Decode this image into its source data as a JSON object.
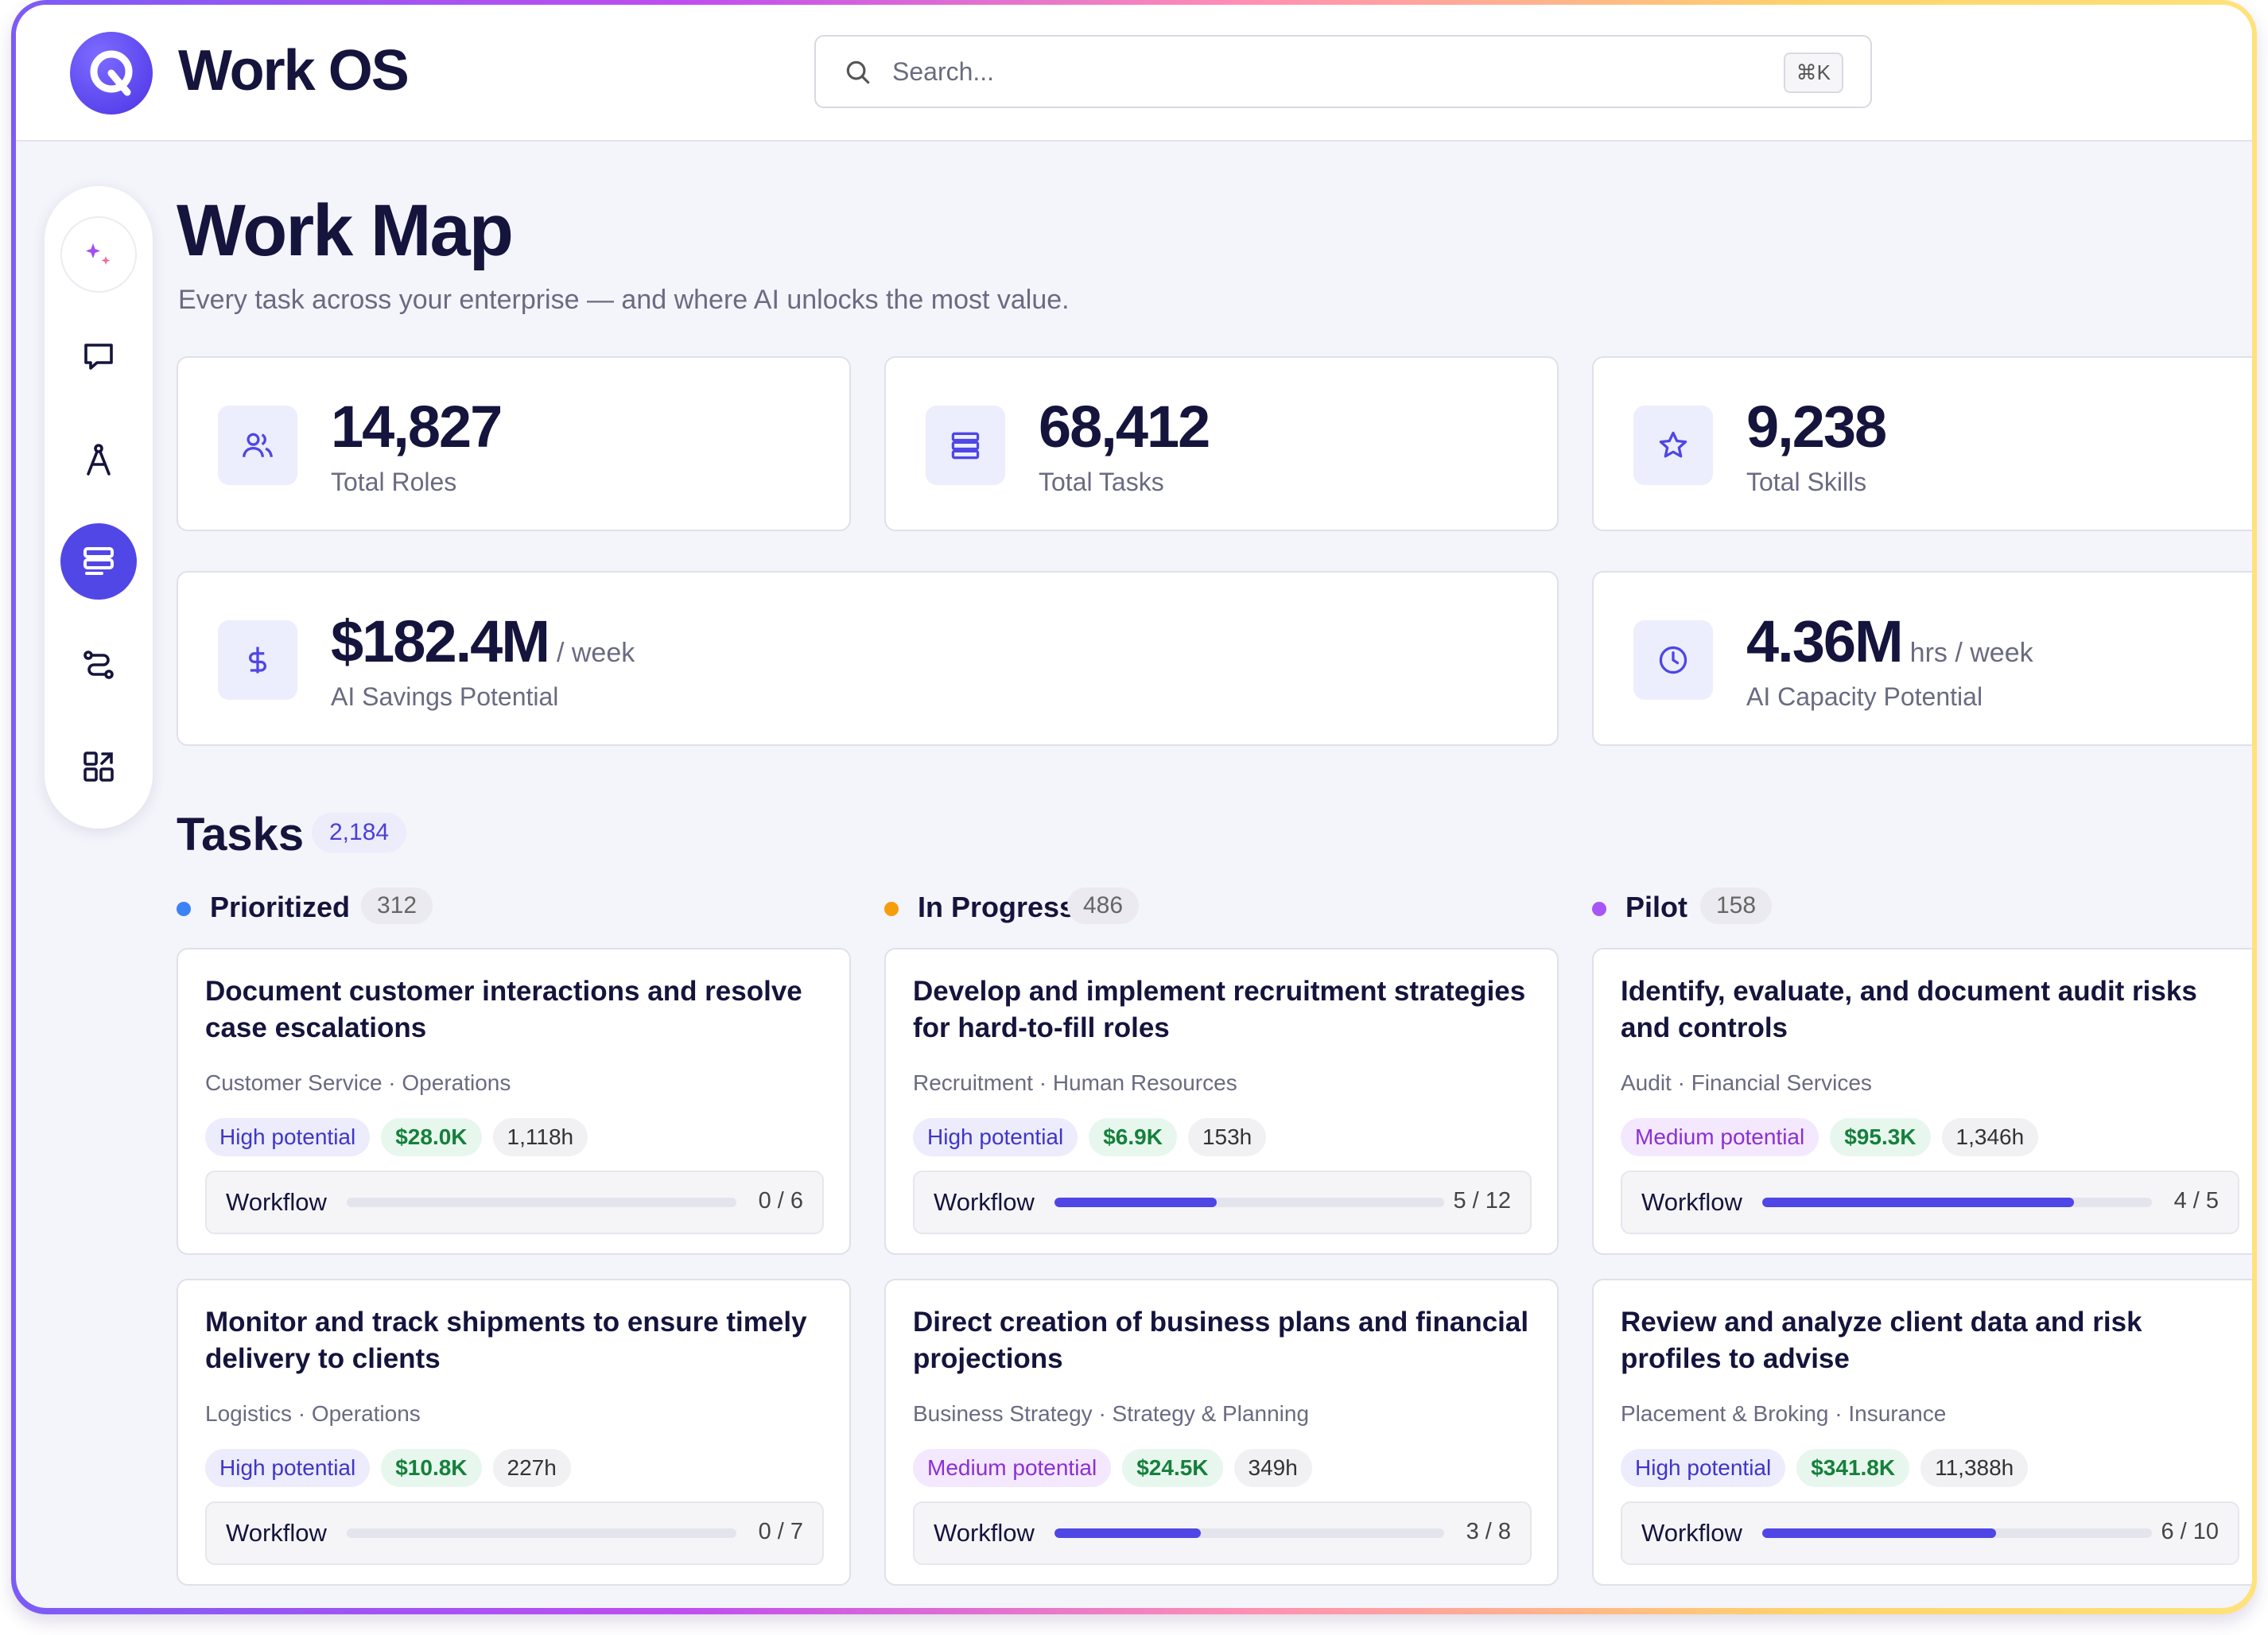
{
  "app": {
    "name": "Work OS"
  },
  "search": {
    "placeholder": "Search...",
    "shortcut": "⌘K"
  },
  "sidebar": {
    "items": [
      {
        "icon": "sparkle-icon",
        "active": false
      },
      {
        "icon": "chat-icon",
        "active": false
      },
      {
        "icon": "compass-icon",
        "active": false
      },
      {
        "icon": "list-icon",
        "active": true
      },
      {
        "icon": "route-icon",
        "active": false
      },
      {
        "icon": "apps-icon",
        "active": false
      }
    ]
  },
  "page": {
    "title": "Work Map",
    "subtitle": "Every task across your enterprise — and where AI unlocks the most value."
  },
  "stats": [
    {
      "icon": "users-icon",
      "value": "14,827",
      "unit": "",
      "label": "Total Roles"
    },
    {
      "icon": "stack-icon",
      "value": "68,412",
      "unit": "",
      "label": "Total Tasks"
    },
    {
      "icon": "star-icon",
      "value": "9,238",
      "unit": "",
      "label": "Total Skills"
    },
    {
      "icon": "dollar-icon",
      "value": "$182.4M",
      "unit": "/ week",
      "label": "AI Savings Potential"
    },
    {
      "icon": "clock-icon",
      "value": "4.36M",
      "unit": "hrs / week",
      "label": "AI Capacity Potential"
    }
  ],
  "tasks": {
    "title": "Tasks",
    "count": "2,184",
    "columns": [
      {
        "name": "Prioritized",
        "count": "312",
        "color": "#3b82f6",
        "cards": [
          {
            "title": "Document customer interactions and resolve case escalations",
            "meta": "Customer Service · Operations",
            "potential": "High potential",
            "potential_level": "high",
            "savings": "$28.0K",
            "hours": "1,118h",
            "workflow_label": "Workflow",
            "workflow_done": 0,
            "workflow_total": 6,
            "workflow_text": "0 / 6"
          },
          {
            "title": "Monitor and track shipments to ensure timely delivery to clients",
            "meta": "Logistics · Operations",
            "potential": "High potential",
            "potential_level": "high",
            "savings": "$10.8K",
            "hours": "227h",
            "workflow_label": "Workflow",
            "workflow_done": 0,
            "workflow_total": 7,
            "workflow_text": "0 / 7"
          }
        ]
      },
      {
        "name": "In Progress",
        "count": "486",
        "color": "#f59e0b",
        "cards": [
          {
            "title": "Develop and implement recruitment strategies for hard-to-fill roles",
            "meta": "Recruitment · Human Resources",
            "potential": "High potential",
            "potential_level": "high",
            "savings": "$6.9K",
            "hours": "153h",
            "workflow_label": "Workflow",
            "workflow_done": 5,
            "workflow_total": 12,
            "workflow_text": "5 / 12"
          },
          {
            "title": "Direct creation of business plans and financial projections",
            "meta": "Business Strategy · Strategy & Planning",
            "potential": "Medium potential",
            "potential_level": "medium",
            "savings": "$24.5K",
            "hours": "349h",
            "workflow_label": "Workflow",
            "workflow_done": 3,
            "workflow_total": 8,
            "workflow_text": "3 / 8"
          }
        ]
      },
      {
        "name": "Pilot",
        "count": "158",
        "color": "#a855f7",
        "cards": [
          {
            "title": "Identify, evaluate, and document audit risks and controls",
            "meta": "Audit · Financial Services",
            "potential": "Medium potential",
            "potential_level": "medium",
            "savings": "$95.3K",
            "hours": "1,346h",
            "workflow_label": "Workflow",
            "workflow_done": 4,
            "workflow_total": 5,
            "workflow_text": "4 / 5"
          },
          {
            "title": "Review and analyze client data and risk profiles to advise",
            "meta": "Placement & Broking · Insurance",
            "potential": "High potential",
            "potential_level": "high",
            "savings": "$341.8K",
            "hours": "11,388h",
            "workflow_label": "Workflow",
            "workflow_done": 6,
            "workflow_total": 10,
            "workflow_text": "6 / 10"
          }
        ]
      }
    ]
  }
}
